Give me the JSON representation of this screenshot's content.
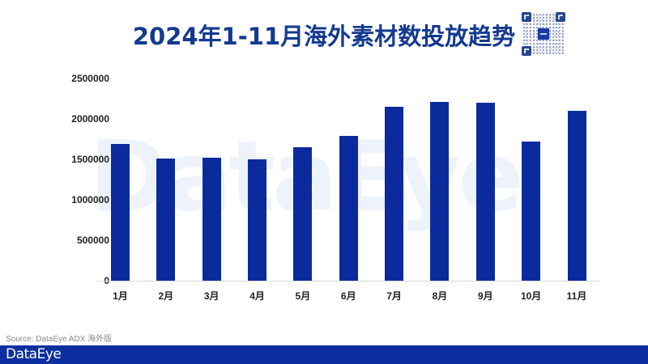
{
  "title": "2024年1-11月海外素材数投放趋势",
  "watermark": "DataEye",
  "source": "Source: DataEye ADX 海外版",
  "brand": "DataEye",
  "colors": {
    "bar": "#0b2b9c",
    "title": "#143a90",
    "footer": "#0b2fa0"
  },
  "chart_data": {
    "type": "bar",
    "title": "2024年1-11月海外素材数投放趋势",
    "xlabel": "",
    "ylabel": "",
    "categories": [
      "1月",
      "2月",
      "3月",
      "4月",
      "5月",
      "6月",
      "7月",
      "8月",
      "9月",
      "10月",
      "11月"
    ],
    "values": [
      1690000,
      1515000,
      1520000,
      1505000,
      1650000,
      1790000,
      2150000,
      2210000,
      2200000,
      1720000,
      2100000
    ],
    "ylim": [
      0,
      2500000
    ],
    "yticks": [
      "0",
      "500000",
      "1000000",
      "1500000",
      "2000000",
      "2500000"
    ],
    "grid": false,
    "legend": "none"
  }
}
